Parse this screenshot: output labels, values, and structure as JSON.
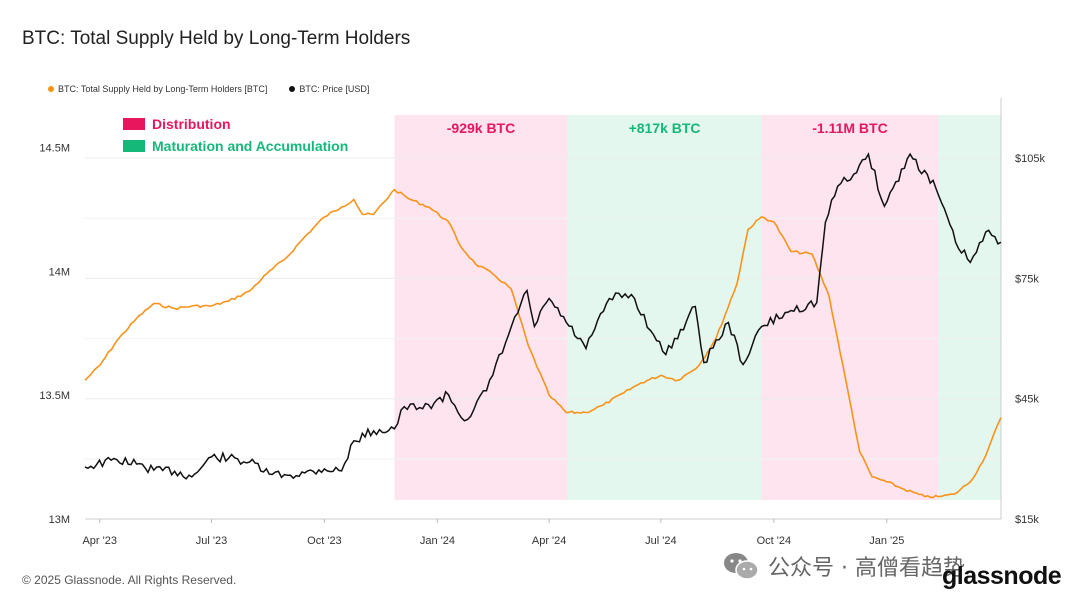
{
  "title": "BTC: Total Supply Held by Long-Term Holders",
  "footer": "© 2025 Glassnode. All Rights Reserved.",
  "watermark": "公众号 · 高僧看趋势",
  "brand": "glassnode",
  "colors": {
    "lth": "#f7931a",
    "price": "#111111",
    "distribution": "#e8175d",
    "accumulation": "#16b87a",
    "distribution_bg": "#fde4ee",
    "accumulation_bg": "#e3f7ee"
  },
  "chart_data": {
    "type": "line",
    "title": "BTC: Total Supply Held by Long-Term Holders",
    "x_ticks": [
      "Apr '23",
      "Jul '23",
      "Oct '23",
      "Jan '24",
      "Apr '24",
      "Jul '24",
      "Oct '24",
      "Jan '25"
    ],
    "y_left_ticks": [
      "13M",
      "13.5M",
      "14M",
      "14.5M"
    ],
    "y_right_ticks": [
      "$15k",
      "$45k",
      "$75k",
      "$105k"
    ],
    "y_left_range": [
      13000000,
      14700000
    ],
    "y_right_range": [
      15000,
      120000
    ],
    "legend_position": "top-left",
    "grid": true,
    "legend_box": [
      {
        "label": "Distribution",
        "color": "#e8175d"
      },
      {
        "label": "Maturation and Accumulation",
        "color": "#16b87a"
      }
    ],
    "phases": [
      {
        "label": "-929k BTC",
        "type": "distribution",
        "start": "2023-11-27",
        "end": "2024-04-16"
      },
      {
        "label": "+817k BTC",
        "type": "accumulation",
        "start": "2024-04-16",
        "end": "2024-09-21"
      },
      {
        "label": "-1.11M BTC",
        "type": "distribution",
        "start": "2024-09-21",
        "end": "2025-02-12"
      },
      {
        "label": "",
        "type": "accumulation",
        "start": "2025-02-12",
        "end": "2025-04-04"
      }
    ],
    "series": [
      {
        "name": "BTC: Total Supply Held by Long-Term Holders [BTC]",
        "axis": "left",
        "points": [
          [
            "2023-03-20",
            13560000
          ],
          [
            "2023-04-01",
            13620000
          ],
          [
            "2023-04-15",
            13720000
          ],
          [
            "2023-05-01",
            13810000
          ],
          [
            "2023-05-15",
            13870000
          ],
          [
            "2023-06-01",
            13850000
          ],
          [
            "2023-06-15",
            13860000
          ],
          [
            "2023-07-01",
            13860000
          ],
          [
            "2023-07-15",
            13880000
          ],
          [
            "2023-08-01",
            13920000
          ],
          [
            "2023-08-15",
            13990000
          ],
          [
            "2023-09-01",
            14060000
          ],
          [
            "2023-09-15",
            14140000
          ],
          [
            "2023-10-01",
            14220000
          ],
          [
            "2023-10-15",
            14260000
          ],
          [
            "2023-10-25",
            14290000
          ],
          [
            "2023-11-01",
            14230000
          ],
          [
            "2023-11-10",
            14230000
          ],
          [
            "2023-11-27",
            14330000
          ],
          [
            "2023-12-10",
            14290000
          ],
          [
            "2023-12-25",
            14260000
          ],
          [
            "2024-01-10",
            14200000
          ],
          [
            "2024-01-20",
            14100000
          ],
          [
            "2024-02-01",
            14030000
          ],
          [
            "2024-02-15",
            13990000
          ],
          [
            "2024-03-01",
            13930000
          ],
          [
            "2024-03-15",
            13700000
          ],
          [
            "2024-04-01",
            13500000
          ],
          [
            "2024-04-15",
            13430000
          ],
          [
            "2024-05-01",
            13430000
          ],
          [
            "2024-05-15",
            13460000
          ],
          [
            "2024-06-01",
            13510000
          ],
          [
            "2024-06-15",
            13550000
          ],
          [
            "2024-07-01",
            13580000
          ],
          [
            "2024-07-15",
            13560000
          ],
          [
            "2024-08-01",
            13620000
          ],
          [
            "2024-08-15",
            13730000
          ],
          [
            "2024-09-01",
            13950000
          ],
          [
            "2024-09-10",
            14170000
          ],
          [
            "2024-09-21",
            14220000
          ],
          [
            "2024-10-01",
            14200000
          ],
          [
            "2024-10-15",
            14080000
          ],
          [
            "2024-11-01",
            14070000
          ],
          [
            "2024-11-15",
            13900000
          ],
          [
            "2024-12-01",
            13500000
          ],
          [
            "2024-12-10",
            13270000
          ],
          [
            "2024-12-20",
            13170000
          ],
          [
            "2025-01-01",
            13150000
          ],
          [
            "2025-01-15",
            13120000
          ],
          [
            "2025-02-01",
            13090000
          ],
          [
            "2025-02-12",
            13090000
          ],
          [
            "2025-02-25",
            13100000
          ],
          [
            "2025-03-10",
            13150000
          ],
          [
            "2025-03-20",
            13230000
          ],
          [
            "2025-04-04",
            13410000
          ]
        ]
      },
      {
        "name": "BTC: Price [USD]",
        "axis": "right",
        "points": [
          [
            "2023-03-20",
            28000
          ],
          [
            "2023-04-15",
            29800
          ],
          [
            "2023-05-01",
            28700
          ],
          [
            "2023-05-15",
            27200
          ],
          [
            "2023-06-01",
            26900
          ],
          [
            "2023-06-15",
            25500
          ],
          [
            "2023-07-01",
            30500
          ],
          [
            "2023-07-15",
            30200
          ],
          [
            "2023-08-01",
            29200
          ],
          [
            "2023-08-17",
            26200
          ],
          [
            "2023-09-01",
            25900
          ],
          [
            "2023-09-15",
            26500
          ],
          [
            "2023-10-01",
            27500
          ],
          [
            "2023-10-15",
            27000
          ],
          [
            "2023-10-25",
            34500
          ],
          [
            "2023-11-10",
            37000
          ],
          [
            "2023-11-27",
            37500
          ],
          [
            "2023-12-05",
            43000
          ],
          [
            "2023-12-20",
            42500
          ],
          [
            "2024-01-10",
            46000
          ],
          [
            "2024-01-23",
            39500
          ],
          [
            "2024-02-10",
            47000
          ],
          [
            "2024-02-28",
            61000
          ],
          [
            "2024-03-14",
            72000
          ],
          [
            "2024-03-20",
            63000
          ],
          [
            "2024-04-01",
            70000
          ],
          [
            "2024-04-15",
            64000
          ],
          [
            "2024-05-01",
            57500
          ],
          [
            "2024-05-20",
            70000
          ],
          [
            "2024-06-07",
            71000
          ],
          [
            "2024-06-25",
            61000
          ],
          [
            "2024-07-05",
            56000
          ],
          [
            "2024-07-29",
            68000
          ],
          [
            "2024-08-05",
            54000
          ],
          [
            "2024-08-25",
            64000
          ],
          [
            "2024-09-06",
            53500
          ],
          [
            "2024-09-21",
            63000
          ],
          [
            "2024-10-15",
            67000
          ],
          [
            "2024-11-05",
            69000
          ],
          [
            "2024-11-12",
            89000
          ],
          [
            "2024-11-22",
            98000
          ],
          [
            "2024-12-05",
            101000
          ],
          [
            "2024-12-17",
            106000
          ],
          [
            "2024-12-30",
            93000
          ],
          [
            "2025-01-20",
            106000
          ],
          [
            "2025-02-10",
            97500
          ],
          [
            "2025-02-26",
            84000
          ],
          [
            "2025-03-10",
            79000
          ],
          [
            "2025-03-25",
            87000
          ],
          [
            "2025-04-04",
            84000
          ]
        ]
      }
    ]
  }
}
